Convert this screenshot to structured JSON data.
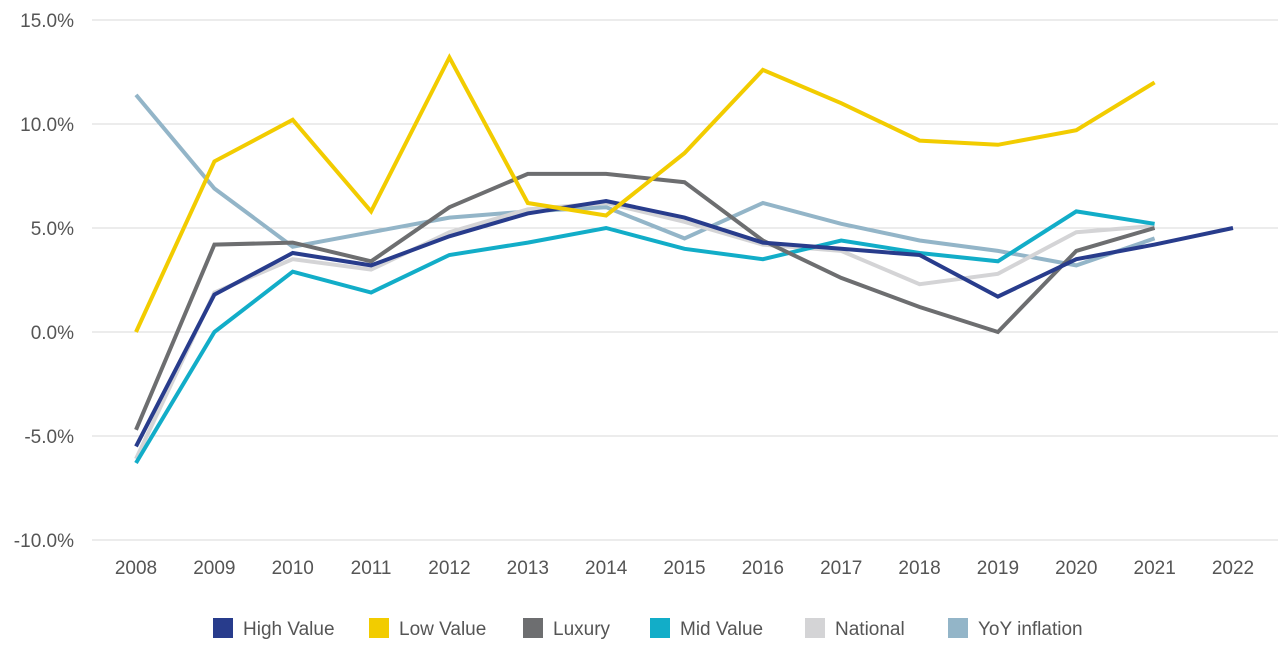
{
  "chart_data": {
    "type": "line",
    "title": "",
    "xlabel": "",
    "ylabel": "",
    "categories": [
      "2008",
      "2009",
      "2010",
      "2011",
      "2012",
      "2013",
      "2014",
      "2015",
      "2016",
      "2017",
      "2018",
      "2019",
      "2020",
      "2021",
      "2022"
    ],
    "ylim": [
      -10,
      15
    ],
    "y_ticks": [
      -10,
      -5,
      0,
      5,
      10,
      15
    ],
    "y_tick_labels": [
      "-10.0%",
      "-5.0%",
      "0.0%",
      "5.0%",
      "10.0%",
      "15.0%"
    ],
    "grid": true,
    "legend_position": "bottom",
    "series": [
      {
        "name": "High Value",
        "color": "#283c8c",
        "values": [
          -5.5,
          1.8,
          3.8,
          3.2,
          4.6,
          5.7,
          6.3,
          5.5,
          4.3,
          4.0,
          3.7,
          1.7,
          3.5,
          4.2,
          5.0
        ]
      },
      {
        "name": "Low Value",
        "color": "#f2cc00",
        "values": [
          0.0,
          8.2,
          10.2,
          5.8,
          13.2,
          6.2,
          5.6,
          8.6,
          12.6,
          11.0,
          9.2,
          9.0,
          9.7,
          12.0,
          null
        ]
      },
      {
        "name": "Luxury",
        "color": "#6d6e70",
        "values": [
          -4.7,
          4.2,
          4.3,
          3.4,
          6.0,
          7.6,
          7.6,
          7.2,
          4.4,
          2.6,
          1.2,
          0.0,
          3.9,
          5.0,
          null
        ]
      },
      {
        "name": "Mid Value",
        "color": "#12adc8",
        "values": [
          -6.3,
          0.0,
          2.9,
          1.9,
          3.7,
          4.3,
          5.0,
          4.0,
          3.5,
          4.4,
          3.8,
          3.4,
          5.8,
          5.2,
          null
        ]
      },
      {
        "name": "National",
        "color": "#d4d4d6",
        "values": [
          -6.1,
          1.9,
          3.5,
          3.0,
          4.8,
          5.9,
          6.2,
          5.3,
          4.2,
          3.9,
          2.3,
          2.8,
          4.8,
          5.1,
          null
        ]
      },
      {
        "name": "YoY inflation",
        "color": "#93b5c8",
        "values": [
          11.4,
          6.9,
          4.1,
          4.8,
          5.5,
          5.8,
          6.0,
          4.5,
          6.2,
          5.2,
          4.4,
          3.9,
          3.2,
          4.5,
          null
        ]
      }
    ]
  }
}
